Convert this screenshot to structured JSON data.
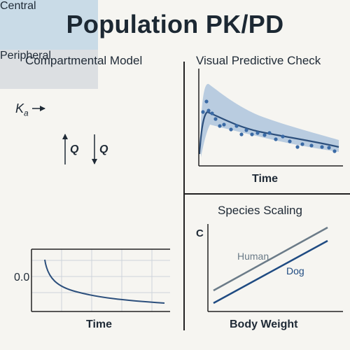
{
  "title": "Population PK/PD",
  "compartmental_model": {
    "title": "Compartmental Model",
    "input_label": "K",
    "input_subscript": "a",
    "central_label": "Central",
    "peripheral_label": "Peripheral",
    "flow_up_label": "Q",
    "flow_down_label": "Q"
  },
  "decay_plot": {
    "y_tick_label": "0.0",
    "x_label": "Time"
  },
  "vpc": {
    "title": "Visual Predictive Check",
    "x_label": "Time",
    "band_color": "#b9cce0",
    "line_color": "#2c4f7c",
    "point_color": "#3a6aa5"
  },
  "species_scaling": {
    "title": "Species Scaling",
    "y_label": "C",
    "x_label": "Body Weight",
    "human_label": "Human",
    "dog_label": "Dog",
    "human_color": "#6b7b88",
    "dog_color": "#1f4b82"
  }
}
